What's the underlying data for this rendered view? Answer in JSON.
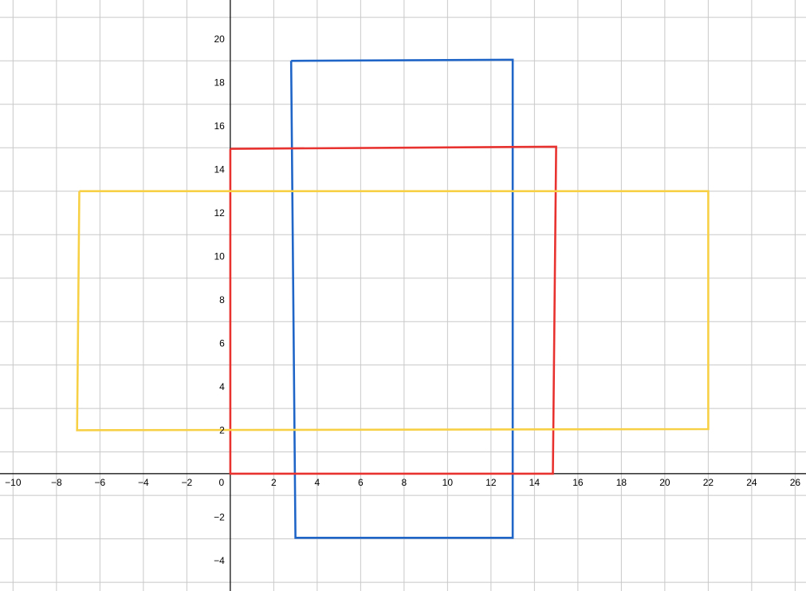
{
  "chart_data": {
    "type": "line",
    "title": "",
    "xlabel": "",
    "ylabel": "",
    "xlim": [
      -10.6,
      26.5
    ],
    "ylim": [
      -5.4,
      21.8
    ],
    "grid": true,
    "x_ticks": [
      -10,
      -8,
      -6,
      -4,
      -2,
      0,
      2,
      4,
      6,
      8,
      10,
      12,
      14,
      16,
      18,
      20,
      22,
      24,
      26
    ],
    "y_ticks": [
      -4,
      -2,
      2,
      4,
      6,
      8,
      10,
      12,
      14,
      16,
      18,
      20
    ],
    "x_tick_labels": [
      "−10",
      "−8",
      "−6",
      "−4",
      "−2",
      "0",
      "2",
      "4",
      "6",
      "8",
      "10",
      "12",
      "14",
      "16",
      "18",
      "20",
      "22",
      "24",
      "26"
    ],
    "y_tick_labels": [
      "−4",
      "−2",
      "2",
      "4",
      "6",
      "8",
      "10",
      "12",
      "14",
      "16",
      "18",
      "20"
    ],
    "series": [
      {
        "name": "blue-rectangle",
        "color": "#1f65c8",
        "points": [
          [
            2.8,
            19
          ],
          [
            13,
            19.05
          ],
          [
            13,
            -2.95
          ],
          [
            3,
            -2.95
          ],
          [
            2.8,
            19
          ]
        ]
      },
      {
        "name": "red-rectangle",
        "color": "#e8322f",
        "points": [
          [
            0,
            14.95
          ],
          [
            15,
            15.05
          ],
          [
            14.85,
            0
          ],
          [
            0,
            0
          ],
          [
            0,
            14.95
          ]
        ]
      },
      {
        "name": "yellow-rectangle",
        "color": "#f7d046",
        "points": [
          [
            -6.95,
            13
          ],
          [
            22,
            13
          ],
          [
            22,
            2.05
          ],
          [
            -7.05,
            2
          ],
          [
            -6.95,
            13
          ]
        ]
      }
    ]
  }
}
